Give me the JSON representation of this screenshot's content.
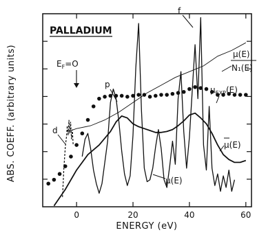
{
  "chart_data": {
    "type": "line",
    "title": "PALLADIUM",
    "xlabel": "ENERGY (eV)",
    "ylabel": "ABS. COEFF. (arbitrary units)",
    "xlim": [
      -12,
      62
    ],
    "ylim": [
      0,
      10
    ],
    "x_ticks": [
      0,
      20,
      40,
      60
    ],
    "x_tick_labels": [
      "0",
      "20",
      "40",
      "60"
    ],
    "y_tick_count": 6,
    "grid": false,
    "legend": "none (curves labelled directly)",
    "annotations": {
      "fermi_lhs": "E",
      "fermi_sub": "F",
      "fermi_rhs": "=O",
      "d": "d",
      "p": "p",
      "f": "f",
      "mu_N1_num": "μ(E)",
      "mu_N1_den": "N₁(E)",
      "mu_exp_mu": "μ",
      "mu_exp_sub": "EXP",
      "mu_exp_rhs": "(E)",
      "mu_bar": "μ(E)",
      "mu": "μ(E)"
    },
    "series": [
      {
        "name": "μ(E)",
        "style": "jagged",
        "x": [
          2,
          3,
          4,
          5,
          6,
          7,
          8,
          9,
          10,
          11,
          12,
          13,
          14,
          15,
          16,
          17,
          18,
          19,
          20,
          21,
          22,
          23,
          24,
          25,
          26,
          27,
          28,
          29,
          30,
          31,
          32,
          33,
          34,
          35,
          36,
          37,
          38,
          39,
          40,
          41,
          42,
          43,
          44,
          45,
          46,
          47,
          48,
          49,
          50,
          51,
          52,
          53,
          54,
          55,
          56
        ],
        "values": [
          2.6,
          3.5,
          3.8,
          3.0,
          1.9,
          1.2,
          0.7,
          1.2,
          2.3,
          3.4,
          5.4,
          6.1,
          5.6,
          4.4,
          2.9,
          1.7,
          1.1,
          1.6,
          3.7,
          7.2,
          9.5,
          5.0,
          2.0,
          1.3,
          1.4,
          2.0,
          3.1,
          4.0,
          3.0,
          1.4,
          1.0,
          2.1,
          3.4,
          2.2,
          5.6,
          7.0,
          3.9,
          2.0,
          3.6,
          6.0,
          8.4,
          5.6,
          9.8,
          3.2,
          1.9,
          5.2,
          2.0,
          1.1,
          1.7,
          0.8,
          1.6,
          1.0,
          1.9,
          0.8,
          1.4
        ]
      },
      {
        "name": "μ(E)/N₁(E)",
        "style": "thin",
        "x": [
          -3,
          0,
          5,
          10,
          15,
          20,
          25,
          30,
          35,
          40,
          45,
          50,
          55,
          60
        ],
        "values": [
          3.9,
          4.05,
          4.2,
          4.5,
          4.9,
          5.4,
          5.9,
          6.3,
          6.7,
          7.0,
          7.3,
          7.8,
          8.1,
          8.5
        ]
      },
      {
        "name": "μ_EXP(E)",
        "style": "dots",
        "x": [
          -10,
          -8,
          -6,
          -4,
          -2,
          0,
          2,
          4,
          6,
          8,
          10,
          12,
          14,
          16,
          18,
          20,
          22,
          24,
          26,
          28,
          30,
          32,
          34,
          36,
          38,
          40,
          42,
          44,
          46,
          48,
          50,
          52,
          54,
          56,
          58,
          60
        ],
        "values": [
          1.2,
          1.4,
          1.7,
          2.1,
          2.6,
          3.2,
          3.8,
          4.5,
          5.2,
          5.6,
          5.7,
          5.75,
          5.75,
          5.75,
          5.7,
          5.75,
          5.8,
          5.8,
          5.7,
          5.75,
          5.8,
          5.8,
          5.85,
          5.9,
          5.95,
          6.1,
          6.2,
          6.15,
          6.1,
          5.95,
          5.8,
          5.8,
          5.85,
          5.8,
          5.8,
          5.8
        ]
      },
      {
        "name": "μ̄(E)",
        "style": "smooth",
        "x": [
          -8,
          -4,
          0,
          4,
          8,
          12,
          14,
          16,
          18,
          20,
          22,
          24,
          26,
          28,
          30,
          32,
          34,
          36,
          38,
          40,
          42,
          44,
          46,
          48,
          50,
          52,
          54,
          56,
          58,
          60
        ],
        "values": [
          0.05,
          0.9,
          1.9,
          2.7,
          3.2,
          3.9,
          4.4,
          4.7,
          4.6,
          4.3,
          4.15,
          4.05,
          3.95,
          3.85,
          3.85,
          3.9,
          4.0,
          4.2,
          4.45,
          4.75,
          4.85,
          4.6,
          4.3,
          3.8,
          3.2,
          2.7,
          2.45,
          2.3,
          2.3,
          2.4
        ]
      },
      {
        "name": "d",
        "style": "dashed",
        "x": [
          -5,
          -4.5,
          -4,
          -3.6,
          -3.3,
          -3.0,
          -2.7,
          -2.4,
          -2.1,
          -1.8,
          -1.5,
          -1.2
        ],
        "values": [
          0.5,
          2.0,
          3.1,
          3.6,
          4.2,
          3.7,
          4.5,
          3.8,
          4.4,
          3.5,
          4.0,
          3.2
        ]
      }
    ]
  }
}
